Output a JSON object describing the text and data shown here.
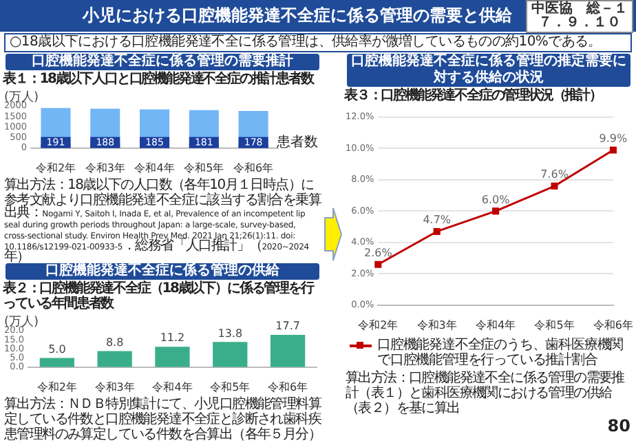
{
  "chart_data": [
    {
      "type": "other",
      "title": "小児における口腔機能発達不全症に係る管理の需要と供給",
      "subtitle": "○18歳以下における口腔機能発達不全に係る管理は、供給率が微増しているものの約10%である。",
      "annotations": [
        "中医協　総－１",
        "７．９．１０"
      ]
    },
    {
      "type": "bar",
      "title": "口腔機能発達不全症に係る管理の需要推計",
      "subtitle": "表１：18歳以下人口と口腔機能発達不全症の推計患者数",
      "ylabel": "(万人)",
      "categories": [
        "令和2年",
        "令和3年",
        "令和4年",
        "令和5年",
        "令和6年"
      ],
      "stacked": true,
      "ylim": [
        0,
        2000
      ],
      "yticks": [
        0,
        500,
        1000,
        1500,
        2000
      ],
      "series": [
        {
          "name": "患者数",
          "color": "#1c3f9e",
          "values": [
            191,
            188,
            185,
            181,
            178
          ],
          "value_labels": [
            "191",
            "188",
            "185",
            "181",
            "178"
          ]
        },
        {
          "color": "#72b6f6",
          "values": [
            1720,
            1690,
            1655,
            1630,
            1590
          ]
        }
      ],
      "annotations": [
        "算出方法：18歳以下の人口数（各年10月１日時点）に参考文献より口腔機能発達不全症に該当する割合を乗算",
        "出典：Nogami Y, Saitoh I, Inada E, et al, Prevalence of an incompetent lip seal during growth periods throughout Japan: a large-scale, survey-based, cross-sectional study. Environ Health Prev Med. 2021 Jan 21;26(1):11. doi: 10.1186/s12199-021-00933-5．総務省「人口推計」（2020~2024年）"
      ]
    },
    {
      "type": "bar",
      "title": "口腔機能発達不全症に係る管理の供給",
      "subtitle": "表２：口腔機能発達不全症（18歳以下）に係る管理を行っている年間患者数",
      "ylabel": "(万人)",
      "categories": [
        "令和2年",
        "令和3年",
        "令和4年",
        "令和5年",
        "令和6年"
      ],
      "ylim": [
        0,
        20
      ],
      "yticks": [
        {
          "value": 0,
          "label": "0.0"
        },
        {
          "value": 5,
          "label": "5.0"
        },
        {
          "value": 10,
          "label": "10.0"
        },
        {
          "value": 15,
          "label": "15.0"
        },
        {
          "value": 20,
          "label": "20.0"
        }
      ],
      "series": [
        {
          "color": "#3aae8a",
          "values": [
            5.0,
            8.8,
            11.2,
            13.8,
            17.7
          ],
          "value_labels": [
            "5.0",
            "8.8",
            "11.2",
            "13.8",
            "17.7"
          ]
        }
      ],
      "annotations": [
        "算出方法：ＮＤＢ特別集計にて、小児口腔機能管理料算定している件数と口腔機能発達不全症と診断され歯科疾患管理料のみ算定している件数を合算出（各年５月分）"
      ]
    },
    {
      "type": "line",
      "title": "口腔機能発達不全症に係る管理の推定需要に対する供給の状況",
      "subtitle": "表３：口腔機能発達不全症の管理状況（推計）",
      "categories": [
        "令和2年",
        "令和3年",
        "令和4年",
        "令和5年",
        "令和6年"
      ],
      "ylim": [
        0,
        12
      ],
      "yticks": [
        {
          "value": 0,
          "label": "0.0%"
        },
        {
          "value": 2,
          "label": "2.0%"
        },
        {
          "value": 4,
          "label": "4.0%"
        },
        {
          "value": 6,
          "label": "6.0%"
        },
        {
          "value": 8,
          "label": "8.0%"
        },
        {
          "value": 10,
          "label": "10.0%"
        },
        {
          "value": 12,
          "label": "12.0%"
        }
      ],
      "grid": "y",
      "legend": "bottom",
      "marker": "square",
      "line_style": "solid",
      "series": [
        {
          "name": "口腔機能発達不全症のうち、歯科医療機関で口腔機能管理を行っている推計割合",
          "color": "#c00000",
          "values": [
            2.6,
            4.7,
            6.0,
            7.6,
            9.9
          ],
          "value_labels": [
            "2.6%",
            "4.7%",
            "6.0%",
            "7.6%",
            "9.9%"
          ]
        }
      ],
      "annotations": [
        "算出方法：口腔機能発達不全に係る管理の需要推計（表１）と歯科医療機関における管理の供給（表２）を基に算出",
        "80"
      ]
    }
  ]
}
